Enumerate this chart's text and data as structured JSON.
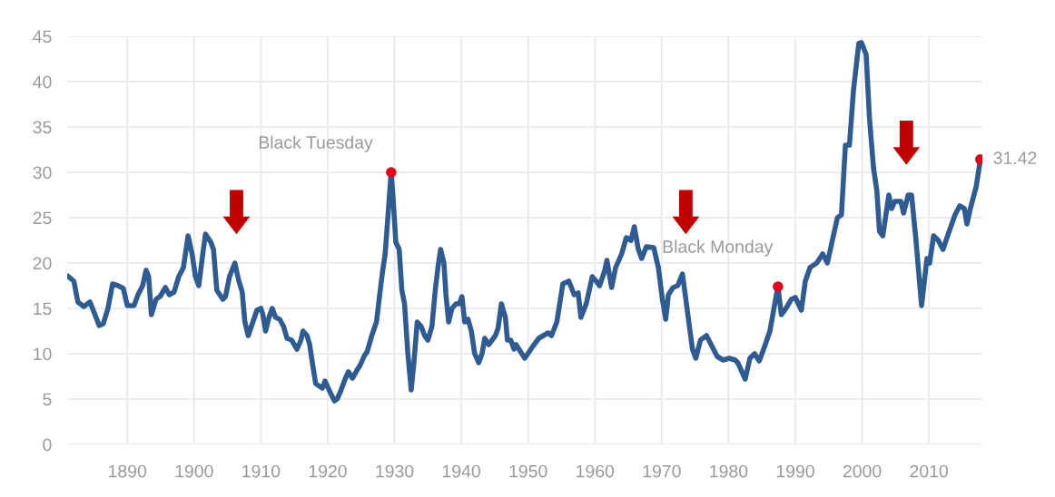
{
  "chart_data": {
    "type": "line",
    "x": [
      1881.2,
      1882,
      1882.6,
      1883.5,
      1884.4,
      1884.9,
      1885.8,
      1886.4,
      1887.1,
      1887.8,
      1888.6,
      1889.4,
      1890,
      1891,
      1891.6,
      1892.3,
      1892.8,
      1893.2,
      1893.6,
      1894.3,
      1894.9,
      1895.7,
      1896.3,
      1897,
      1897.7,
      1898.4,
      1899.1,
      1899.7,
      1900.2,
      1900.7,
      1901.3,
      1901.7,
      1902.5,
      1902.9,
      1903.4,
      1904.3,
      1904.7,
      1905.3,
      1906.1,
      1906.7,
      1907.2,
      1907.6,
      1908.1,
      1908.8,
      1909.4,
      1910,
      1910.3,
      1910.7,
      1911.2,
      1911.7,
      1912.2,
      1912.8,
      1913.4,
      1913.9,
      1914.6,
      1915.4,
      1916,
      1916.3,
      1916.9,
      1917.3,
      1917.7,
      1918.2,
      1919.2,
      1919.6,
      1920.2,
      1921,
      1921.4,
      1921.9,
      1922.6,
      1923.1,
      1923.7,
      1924.4,
      1924.9,
      1925.5,
      1925.9,
      1926.6,
      1927.3,
      1927.7,
      1928.2,
      1928.6,
      1929.1,
      1929.5,
      1929.8,
      1930.2,
      1930.7,
      1931.1,
      1931.5,
      1932,
      1932.5,
      1932.9,
      1933.4,
      1934,
      1934.5,
      1935,
      1935.6,
      1936.1,
      1936.5,
      1936.9,
      1937.4,
      1937.7,
      1938.1,
      1938.6,
      1939.2,
      1939.7,
      1940.1,
      1940.5,
      1941,
      1941.5,
      1942,
      1942.6,
      1943.1,
      1943.5,
      1944.1,
      1944.6,
      1945.1,
      1945.5,
      1946,
      1946.6,
      1946.9,
      1947.4,
      1947.9,
      1948.2,
      1948.8,
      1949.5,
      1950.7,
      1951.6,
      1953,
      1953.5,
      1954.3,
      1955.2,
      1956.1,
      1956.9,
      1957.5,
      1957.9,
      1958.7,
      1959.6,
      1960.2,
      1960.7,
      1961.4,
      1961.8,
      1962.5,
      1963.1,
      1964,
      1964.7,
      1965.4,
      1965.9,
      1966.5,
      1967,
      1967.7,
      1968.8,
      1969.5,
      1970.1,
      1970.6,
      1971,
      1971.7,
      1972.4,
      1973.1,
      1973.7,
      1974.6,
      1975.1,
      1975.8,
      1976.7,
      1977.4,
      1978.3,
      1979.2,
      1980.1,
      1981,
      1981.4,
      1982.5,
      1983.2,
      1983.9,
      1984.6,
      1985.5,
      1986.2,
      1986.8,
      1987.4,
      1987.9,
      1988.6,
      1989.4,
      1990,
      1990.9,
      1991.5,
      1992.2,
      1993.2,
      1994.1,
      1994.8,
      1995.4,
      1996.3,
      1996.9,
      1997.5,
      1998.1,
      1998.7,
      1999.5,
      1999.9,
      2000.6,
      2001.1,
      2001.7,
      2002.2,
      2002.6,
      2003.1,
      2004,
      2004.4,
      2004.9,
      2005.8,
      2006.2,
      2006.9,
      2007.4,
      2008,
      2008.9,
      2009.7,
      2010.1,
      2010.7,
      2011.4,
      2012.1,
      2012.8,
      2013.9,
      2014.6,
      2015.3,
      2015.7,
      2016.2,
      2017.1,
      2017.7
    ],
    "series": [
      {
        "color": "#2f5b93",
        "values": [
          18.5,
          18,
          15.7,
          15.2,
          15.7,
          14.8,
          13.1,
          13.3,
          15,
          17.7,
          17.5,
          17.2,
          15.3,
          15.3,
          16.5,
          17.5,
          19.2,
          18.5,
          14.3,
          16,
          16.3,
          17.3,
          16.5,
          16.8,
          18.5,
          19.5,
          23,
          21,
          18.5,
          17.5,
          21,
          23.2,
          22.3,
          21.5,
          17,
          16,
          16.3,
          18.5,
          20,
          18,
          16.8,
          13.5,
          12,
          13.5,
          14.8,
          15,
          14.3,
          12.5,
          14,
          15,
          14,
          13.8,
          13,
          11.7,
          11.5,
          10.5,
          11.5,
          12.5,
          12,
          11,
          9,
          6.7,
          6.2,
          7,
          6,
          4.8,
          5,
          5.8,
          7.2,
          8,
          7.3,
          8.2,
          8.8,
          9.8,
          10.2,
          12,
          13.5,
          16,
          19,
          21,
          26,
          30,
          27,
          22.3,
          21.5,
          17,
          15.5,
          10,
          6,
          9,
          13.5,
          13,
          12,
          11.5,
          13,
          17,
          19.5,
          21.5,
          20,
          16.5,
          13.5,
          15,
          15.5,
          15.5,
          16.3,
          13.5,
          13.8,
          12.5,
          10,
          9,
          10,
          11.7,
          11,
          11.5,
          12,
          12.8,
          15.5,
          14,
          11.5,
          11.5,
          10.5,
          11,
          10.3,
          9.5,
          10.8,
          11.7,
          12.3,
          12,
          13.5,
          17.7,
          18,
          16.5,
          16.7,
          14,
          15.5,
          18.5,
          18,
          17.5,
          19,
          20.3,
          17.3,
          19.5,
          21,
          22.8,
          22.5,
          24,
          21.5,
          20.5,
          21.8,
          21.7,
          19.5,
          16,
          13.8,
          16.5,
          17.3,
          17.5,
          18.8,
          15.5,
          10.5,
          9.5,
          11.5,
          12,
          11,
          9.7,
          9.3,
          9.5,
          9.3,
          9,
          7.2,
          9.5,
          10,
          9.2,
          11,
          12.5,
          15,
          17.4,
          14.3,
          15,
          16,
          16.2,
          14.8,
          18,
          19.5,
          20,
          21,
          20,
          22,
          25,
          25.3,
          33,
          33,
          39,
          44.2,
          44.3,
          43,
          36,
          30.5,
          28,
          23.5,
          23,
          27.5,
          26,
          26.8,
          26.8,
          25.5,
          27.5,
          27.5,
          23,
          15.3,
          20.5,
          20,
          23,
          22.5,
          21.5,
          23,
          25.3,
          26.3,
          26,
          24.3,
          26,
          28.5,
          31.42
        ]
      }
    ],
    "annotations": [
      {
        "text": "Black Tuesday",
        "x": 1929.5,
        "y": 30
      },
      {
        "text": "Black Monday",
        "x": 1987.4,
        "y": 17.4
      },
      {
        "text": "31.42",
        "x": 2017.7,
        "y": 31.42
      }
    ],
    "xlim": [
      1881,
      2018
    ],
    "xticks": [
      1890,
      1900,
      1910,
      1920,
      1930,
      1940,
      1950,
      1960,
      1970,
      1980,
      1990,
      2000,
      2010
    ],
    "ylim": [
      0,
      45
    ],
    "yticks": [
      0,
      5,
      10,
      15,
      20,
      25,
      30,
      35,
      40,
      45
    ],
    "grid": true
  }
}
